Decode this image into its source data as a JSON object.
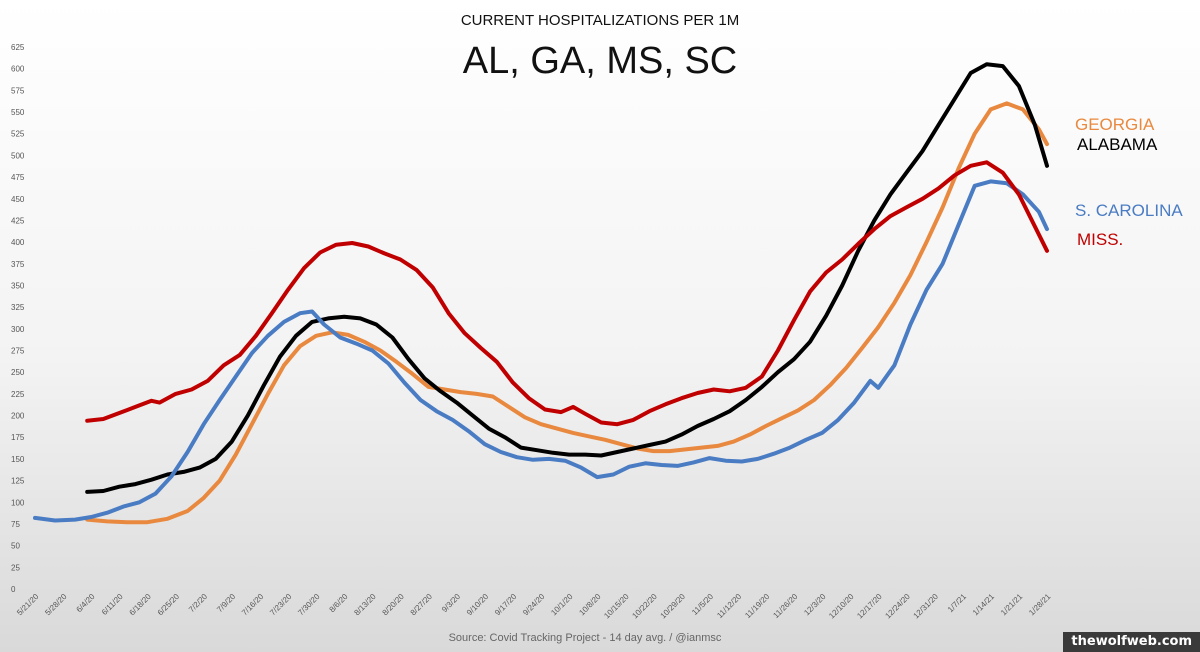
{
  "chart_data": {
    "type": "line",
    "title": "CURRENT HOSPITALIZATIONS PER 1M",
    "subtitle": "AL, GA, MS, SC",
    "source": "Source: Covid Tracking Project - 14 day avg. / @ianmsc",
    "ylim": [
      0,
      625
    ],
    "yticks": [
      0,
      25,
      50,
      75,
      100,
      125,
      150,
      175,
      200,
      225,
      250,
      275,
      300,
      325,
      350,
      375,
      400,
      425,
      450,
      475,
      500,
      525,
      550,
      575,
      600,
      625
    ],
    "x_dates": [
      "2020-05-21",
      "2021-01-30"
    ],
    "xticks": [
      "5/21/20",
      "5/28/20",
      "6/4/20",
      "6/11/20",
      "6/18/20",
      "6/25/20",
      "7/2/20",
      "7/9/20",
      "7/16/20",
      "7/23/20",
      "7/30/20",
      "8/6/20",
      "8/13/20",
      "8/20/20",
      "8/27/20",
      "9/3/20",
      "9/10/20",
      "9/17/20",
      "9/24/20",
      "10/1/20",
      "10/8/20",
      "10/15/20",
      "10/22/20",
      "10/29/20",
      "11/5/20",
      "11/12/20",
      "11/19/20",
      "11/26/20",
      "12/3/20",
      "12/10/20",
      "12/17/20",
      "12/24/20",
      "12/31/20",
      "1/7/21",
      "1/14/21",
      "1/21/21",
      "1/28/21"
    ],
    "grid": false,
    "legend": "inline-right",
    "series": [
      {
        "name": "GEORGIA",
        "color": "#e8893f",
        "points": [
          [
            "2020-06-03",
            80
          ],
          [
            "2020-06-08",
            78
          ],
          [
            "2020-06-13",
            77
          ],
          [
            "2020-06-18",
            77
          ],
          [
            "2020-06-23",
            81
          ],
          [
            "2020-06-28",
            90
          ],
          [
            "2020-07-02",
            105
          ],
          [
            "2020-07-06",
            125
          ],
          [
            "2020-07-10",
            155
          ],
          [
            "2020-07-14",
            190
          ],
          [
            "2020-07-18",
            225
          ],
          [
            "2020-07-22",
            258
          ],
          [
            "2020-07-26",
            280
          ],
          [
            "2020-07-30",
            292
          ],
          [
            "2020-08-03",
            296
          ],
          [
            "2020-08-07",
            293
          ],
          [
            "2020-08-11",
            285
          ],
          [
            "2020-08-15",
            275
          ],
          [
            "2020-08-19",
            262
          ],
          [
            "2020-08-23",
            248
          ],
          [
            "2020-08-27",
            233
          ],
          [
            "2020-08-31",
            230
          ],
          [
            "2020-09-04",
            227
          ],
          [
            "2020-09-08",
            225
          ],
          [
            "2020-09-12",
            222
          ],
          [
            "2020-09-16",
            210
          ],
          [
            "2020-09-20",
            198
          ],
          [
            "2020-09-24",
            190
          ],
          [
            "2020-09-28",
            185
          ],
          [
            "2020-10-02",
            180
          ],
          [
            "2020-10-06",
            176
          ],
          [
            "2020-10-10",
            172
          ],
          [
            "2020-10-14",
            167
          ],
          [
            "2020-10-18",
            162
          ],
          [
            "2020-10-22",
            159
          ],
          [
            "2020-10-26",
            159
          ],
          [
            "2020-10-30",
            161
          ],
          [
            "2020-11-03",
            163
          ],
          [
            "2020-11-07",
            165
          ],
          [
            "2020-11-11",
            170
          ],
          [
            "2020-11-15",
            178
          ],
          [
            "2020-11-19",
            188
          ],
          [
            "2020-11-23",
            197
          ],
          [
            "2020-11-27",
            206
          ],
          [
            "2020-12-01",
            218
          ],
          [
            "2020-12-05",
            235
          ],
          [
            "2020-12-09",
            255
          ],
          [
            "2020-12-13",
            278
          ],
          [
            "2020-12-17",
            302
          ],
          [
            "2020-12-21",
            330
          ],
          [
            "2020-12-25",
            362
          ],
          [
            "2020-12-29",
            400
          ],
          [
            "2021-01-02",
            440
          ],
          [
            "2021-01-06",
            485
          ],
          [
            "2021-01-10",
            525
          ],
          [
            "2021-01-14",
            553
          ],
          [
            "2021-01-18",
            560
          ],
          [
            "2021-01-22",
            553
          ],
          [
            "2021-01-26",
            530
          ],
          [
            "2021-01-28",
            513
          ]
        ]
      },
      {
        "name": "ALABAMA",
        "color": "#000000",
        "points": [
          [
            "2020-06-03",
            112
          ],
          [
            "2020-06-07",
            113
          ],
          [
            "2020-06-11",
            118
          ],
          [
            "2020-06-15",
            121
          ],
          [
            "2020-06-19",
            126
          ],
          [
            "2020-06-23",
            132
          ],
          [
            "2020-06-27",
            135
          ],
          [
            "2020-07-01",
            140
          ],
          [
            "2020-07-05",
            150
          ],
          [
            "2020-07-09",
            170
          ],
          [
            "2020-07-13",
            200
          ],
          [
            "2020-07-17",
            235
          ],
          [
            "2020-07-21",
            268
          ],
          [
            "2020-07-25",
            292
          ],
          [
            "2020-07-29",
            308
          ],
          [
            "2020-08-02",
            312
          ],
          [
            "2020-08-06",
            314
          ],
          [
            "2020-08-10",
            312
          ],
          [
            "2020-08-14",
            305
          ],
          [
            "2020-08-18",
            290
          ],
          [
            "2020-08-22",
            265
          ],
          [
            "2020-08-26",
            243
          ],
          [
            "2020-08-30",
            228
          ],
          [
            "2020-09-03",
            215
          ],
          [
            "2020-09-07",
            200
          ],
          [
            "2020-09-11",
            185
          ],
          [
            "2020-09-15",
            175
          ],
          [
            "2020-09-19",
            163
          ],
          [
            "2020-09-23",
            160
          ],
          [
            "2020-09-27",
            157
          ],
          [
            "2020-10-01",
            155
          ],
          [
            "2020-10-05",
            155
          ],
          [
            "2020-10-09",
            154
          ],
          [
            "2020-10-13",
            158
          ],
          [
            "2020-10-17",
            162
          ],
          [
            "2020-10-21",
            166
          ],
          [
            "2020-10-25",
            170
          ],
          [
            "2020-10-29",
            178
          ],
          [
            "2020-11-02",
            188
          ],
          [
            "2020-11-06",
            196
          ],
          [
            "2020-11-10",
            205
          ],
          [
            "2020-11-14",
            218
          ],
          [
            "2020-11-18",
            233
          ],
          [
            "2020-11-22",
            250
          ],
          [
            "2020-11-26",
            265
          ],
          [
            "2020-11-30",
            285
          ],
          [
            "2020-12-04",
            315
          ],
          [
            "2020-12-08",
            350
          ],
          [
            "2020-12-12",
            390
          ],
          [
            "2020-12-16",
            425
          ],
          [
            "2020-12-20",
            455
          ],
          [
            "2020-12-24",
            480
          ],
          [
            "2020-12-28",
            505
          ],
          [
            "2021-01-01",
            535
          ],
          [
            "2021-01-05",
            565
          ],
          [
            "2021-01-09",
            595
          ],
          [
            "2021-01-13",
            605
          ],
          [
            "2021-01-17",
            603
          ],
          [
            "2021-01-21",
            580
          ],
          [
            "2021-01-25",
            535
          ],
          [
            "2021-01-28",
            488
          ]
        ]
      },
      {
        "name": "S. CAROLINA",
        "color": "#4a7cc4",
        "points": [
          [
            "2020-05-21",
            82
          ],
          [
            "2020-05-26",
            79
          ],
          [
            "2020-05-31",
            80
          ],
          [
            "2020-06-04",
            83
          ],
          [
            "2020-06-08",
            88
          ],
          [
            "2020-06-12",
            95
          ],
          [
            "2020-06-16",
            100
          ],
          [
            "2020-06-20",
            110
          ],
          [
            "2020-06-24",
            130
          ],
          [
            "2020-06-28",
            158
          ],
          [
            "2020-07-02",
            190
          ],
          [
            "2020-07-06",
            218
          ],
          [
            "2020-07-10",
            245
          ],
          [
            "2020-07-14",
            272
          ],
          [
            "2020-07-18",
            292
          ],
          [
            "2020-07-22",
            308
          ],
          [
            "2020-07-26",
            318
          ],
          [
            "2020-07-29",
            320
          ],
          [
            "2020-08-01",
            305
          ],
          [
            "2020-08-05",
            290
          ],
          [
            "2020-08-09",
            283
          ],
          [
            "2020-08-13",
            275
          ],
          [
            "2020-08-17",
            260
          ],
          [
            "2020-08-21",
            238
          ],
          [
            "2020-08-25",
            218
          ],
          [
            "2020-08-29",
            205
          ],
          [
            "2020-09-02",
            195
          ],
          [
            "2020-09-06",
            182
          ],
          [
            "2020-09-10",
            167
          ],
          [
            "2020-09-14",
            158
          ],
          [
            "2020-09-18",
            152
          ],
          [
            "2020-09-22",
            149
          ],
          [
            "2020-09-26",
            150
          ],
          [
            "2020-09-30",
            148
          ],
          [
            "2020-10-04",
            140
          ],
          [
            "2020-10-08",
            129
          ],
          [
            "2020-10-12",
            132
          ],
          [
            "2020-10-16",
            141
          ],
          [
            "2020-10-20",
            145
          ],
          [
            "2020-10-24",
            143
          ],
          [
            "2020-10-28",
            142
          ],
          [
            "2020-11-01",
            146
          ],
          [
            "2020-11-05",
            151
          ],
          [
            "2020-11-09",
            148
          ],
          [
            "2020-11-13",
            147
          ],
          [
            "2020-11-17",
            150
          ],
          [
            "2020-11-21",
            156
          ],
          [
            "2020-11-25",
            163
          ],
          [
            "2020-11-29",
            172
          ],
          [
            "2020-12-03",
            180
          ],
          [
            "2020-12-07",
            195
          ],
          [
            "2020-12-11",
            215
          ],
          [
            "2020-12-15",
            240
          ],
          [
            "2020-12-17",
            232
          ],
          [
            "2020-12-21",
            258
          ],
          [
            "2020-12-25",
            305
          ],
          [
            "2020-12-29",
            345
          ],
          [
            "2021-01-02",
            375
          ],
          [
            "2021-01-06",
            420
          ],
          [
            "2021-01-10",
            465
          ],
          [
            "2021-01-14",
            470
          ],
          [
            "2021-01-18",
            468
          ],
          [
            "2021-01-22",
            455
          ],
          [
            "2021-01-26",
            435
          ],
          [
            "2021-01-28",
            415
          ]
        ]
      },
      {
        "name": "MISS.",
        "color": "#c00000",
        "points": [
          [
            "2020-06-03",
            194
          ],
          [
            "2020-06-07",
            196
          ],
          [
            "2020-06-11",
            203
          ],
          [
            "2020-06-15",
            210
          ],
          [
            "2020-06-19",
            217
          ],
          [
            "2020-06-21",
            215
          ],
          [
            "2020-06-25",
            225
          ],
          [
            "2020-06-29",
            230
          ],
          [
            "2020-07-03",
            240
          ],
          [
            "2020-07-07",
            258
          ],
          [
            "2020-07-11",
            270
          ],
          [
            "2020-07-15",
            292
          ],
          [
            "2020-07-19",
            318
          ],
          [
            "2020-07-23",
            345
          ],
          [
            "2020-07-27",
            370
          ],
          [
            "2020-07-31",
            388
          ],
          [
            "2020-08-04",
            397
          ],
          [
            "2020-08-08",
            399
          ],
          [
            "2020-08-12",
            395
          ],
          [
            "2020-08-16",
            387
          ],
          [
            "2020-08-20",
            380
          ],
          [
            "2020-08-24",
            368
          ],
          [
            "2020-08-28",
            348
          ],
          [
            "2020-09-01",
            318
          ],
          [
            "2020-09-05",
            295
          ],
          [
            "2020-09-09",
            278
          ],
          [
            "2020-09-13",
            262
          ],
          [
            "2020-09-17",
            238
          ],
          [
            "2020-09-21",
            220
          ],
          [
            "2020-09-25",
            207
          ],
          [
            "2020-09-29",
            204
          ],
          [
            "2020-10-02",
            210
          ],
          [
            "2020-10-05",
            202
          ],
          [
            "2020-10-09",
            192
          ],
          [
            "2020-10-13",
            190
          ],
          [
            "2020-10-17",
            195
          ],
          [
            "2020-10-21",
            205
          ],
          [
            "2020-10-25",
            213
          ],
          [
            "2020-10-29",
            220
          ],
          [
            "2020-11-02",
            226
          ],
          [
            "2020-11-06",
            230
          ],
          [
            "2020-11-10",
            228
          ],
          [
            "2020-11-14",
            232
          ],
          [
            "2020-11-18",
            245
          ],
          [
            "2020-11-22",
            275
          ],
          [
            "2020-11-26",
            310
          ],
          [
            "2020-11-30",
            343
          ],
          [
            "2020-12-04",
            365
          ],
          [
            "2020-12-08",
            380
          ],
          [
            "2020-12-12",
            398
          ],
          [
            "2020-12-16",
            415
          ],
          [
            "2020-12-20",
            430
          ],
          [
            "2020-12-24",
            440
          ],
          [
            "2020-12-28",
            450
          ],
          [
            "2021-01-01",
            462
          ],
          [
            "2021-01-05",
            477
          ],
          [
            "2021-01-09",
            488
          ],
          [
            "2021-01-13",
            492
          ],
          [
            "2021-01-17",
            480
          ],
          [
            "2021-01-21",
            455
          ],
          [
            "2021-01-25",
            418
          ],
          [
            "2021-01-28",
            390
          ]
        ]
      }
    ]
  },
  "watermark": "thewolfweb.com"
}
